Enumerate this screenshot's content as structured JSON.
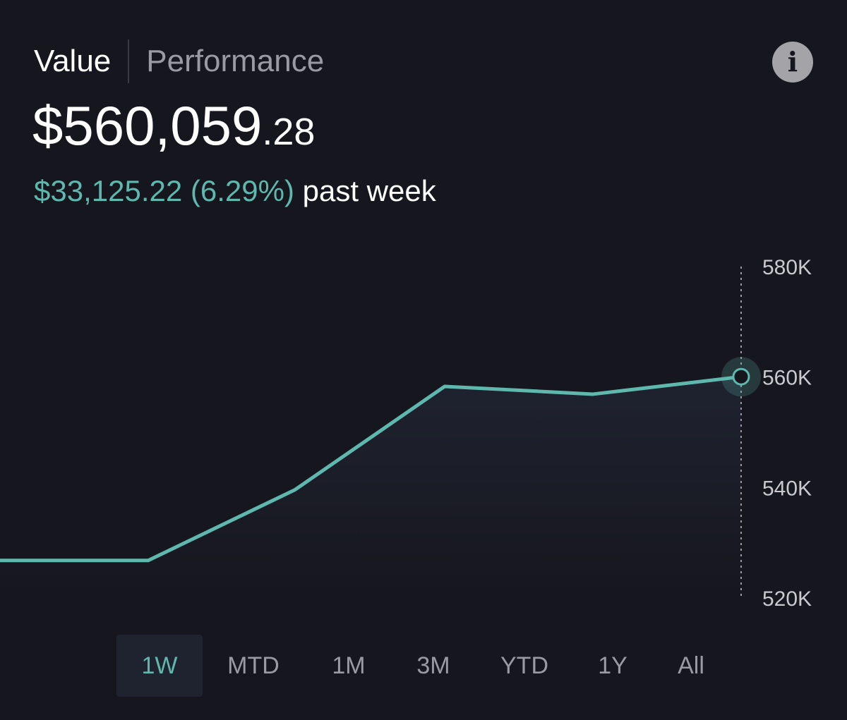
{
  "tabs": [
    {
      "label": "Value",
      "active": true
    },
    {
      "label": "Performance",
      "active": false
    }
  ],
  "info_icon": {
    "name": "info-icon",
    "glyph": "i"
  },
  "portfolio": {
    "value_major": "$560,059",
    "value_minor": ".28",
    "change_amount": "$33,125.22 (6.29%)",
    "change_period": "past week"
  },
  "colors": {
    "background": "#16161e",
    "accent": "#5fb8ad",
    "muted_text": "#9a9aa3",
    "active_range_bg": "#1f2330"
  },
  "chart_data": {
    "type": "area",
    "title": "",
    "xlabel": "",
    "ylabel": "",
    "x": [
      1,
      2,
      3,
      4,
      5,
      6
    ],
    "values": [
      526800,
      526800,
      539600,
      558300,
      556900,
      560059.28
    ],
    "ylim": [
      520000,
      580000
    ],
    "yticks": [
      520000,
      540000,
      560000,
      580000
    ],
    "ytick_labels": [
      "520K",
      "540K",
      "560K",
      "580K"
    ],
    "grid": false,
    "legend": "none",
    "y_axis_side": "right",
    "highlight": "last-point"
  },
  "ranges": [
    {
      "label": "1W",
      "active": true
    },
    {
      "label": "MTD",
      "active": false
    },
    {
      "label": "1M",
      "active": false
    },
    {
      "label": "3M",
      "active": false
    },
    {
      "label": "YTD",
      "active": false
    },
    {
      "label": "1Y",
      "active": false
    },
    {
      "label": "All",
      "active": false
    }
  ]
}
